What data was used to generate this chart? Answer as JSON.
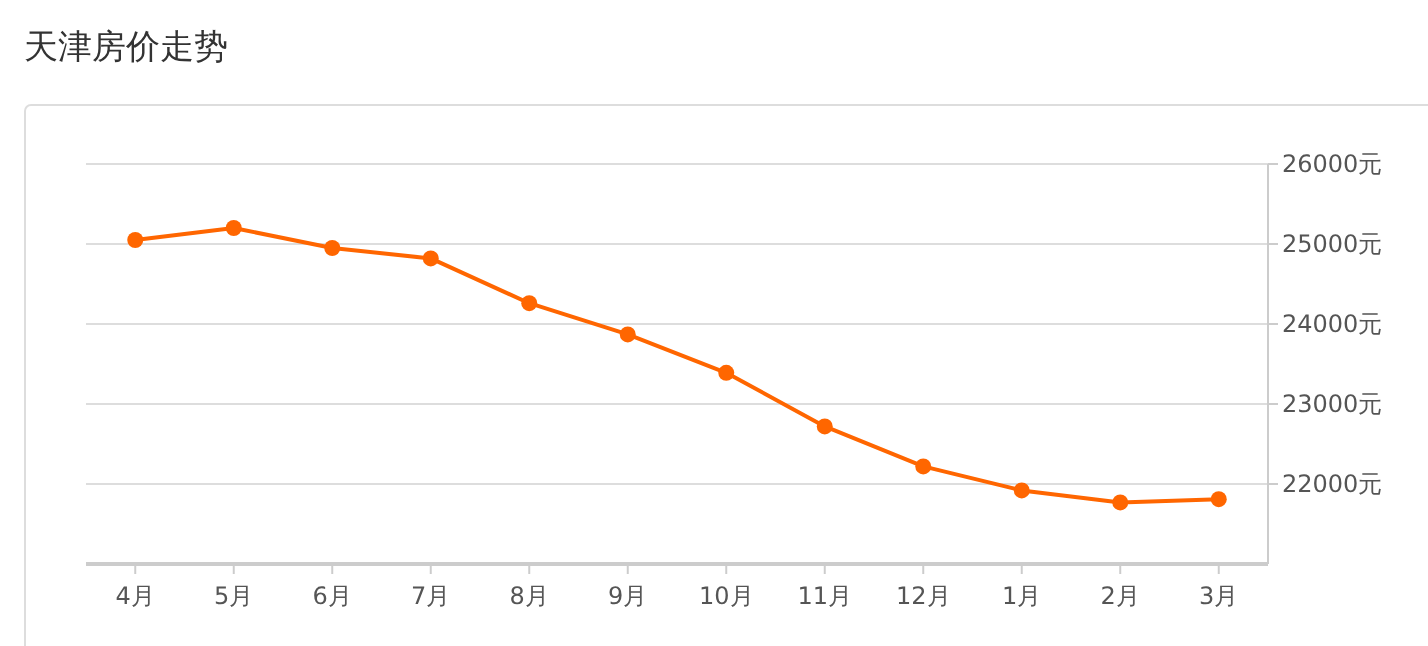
{
  "chart_data": {
    "type": "line",
    "title": "天津房价走势",
    "categories": [
      "4月",
      "5月",
      "6月",
      "7月",
      "8月",
      "9月",
      "10月",
      "11月",
      "12月",
      "1月",
      "2月",
      "3月"
    ],
    "series": [
      {
        "color": "#ff6600",
        "values": [
          25050,
          25200,
          24950,
          24820,
          24260,
          23870,
          23390,
          22720,
          22220,
          21920,
          21770,
          21810
        ]
      }
    ],
    "ylim": [
      21000,
      26000
    ],
    "yticks": [
      {
        "value": 22000,
        "label": "22000元"
      },
      {
        "value": 23000,
        "label": "23000元"
      },
      {
        "value": 24000,
        "label": "24000元"
      },
      {
        "value": 25000,
        "label": "25000元"
      },
      {
        "value": 26000,
        "label": "26000元"
      }
    ],
    "grid": "y",
    "marker": "circle"
  }
}
